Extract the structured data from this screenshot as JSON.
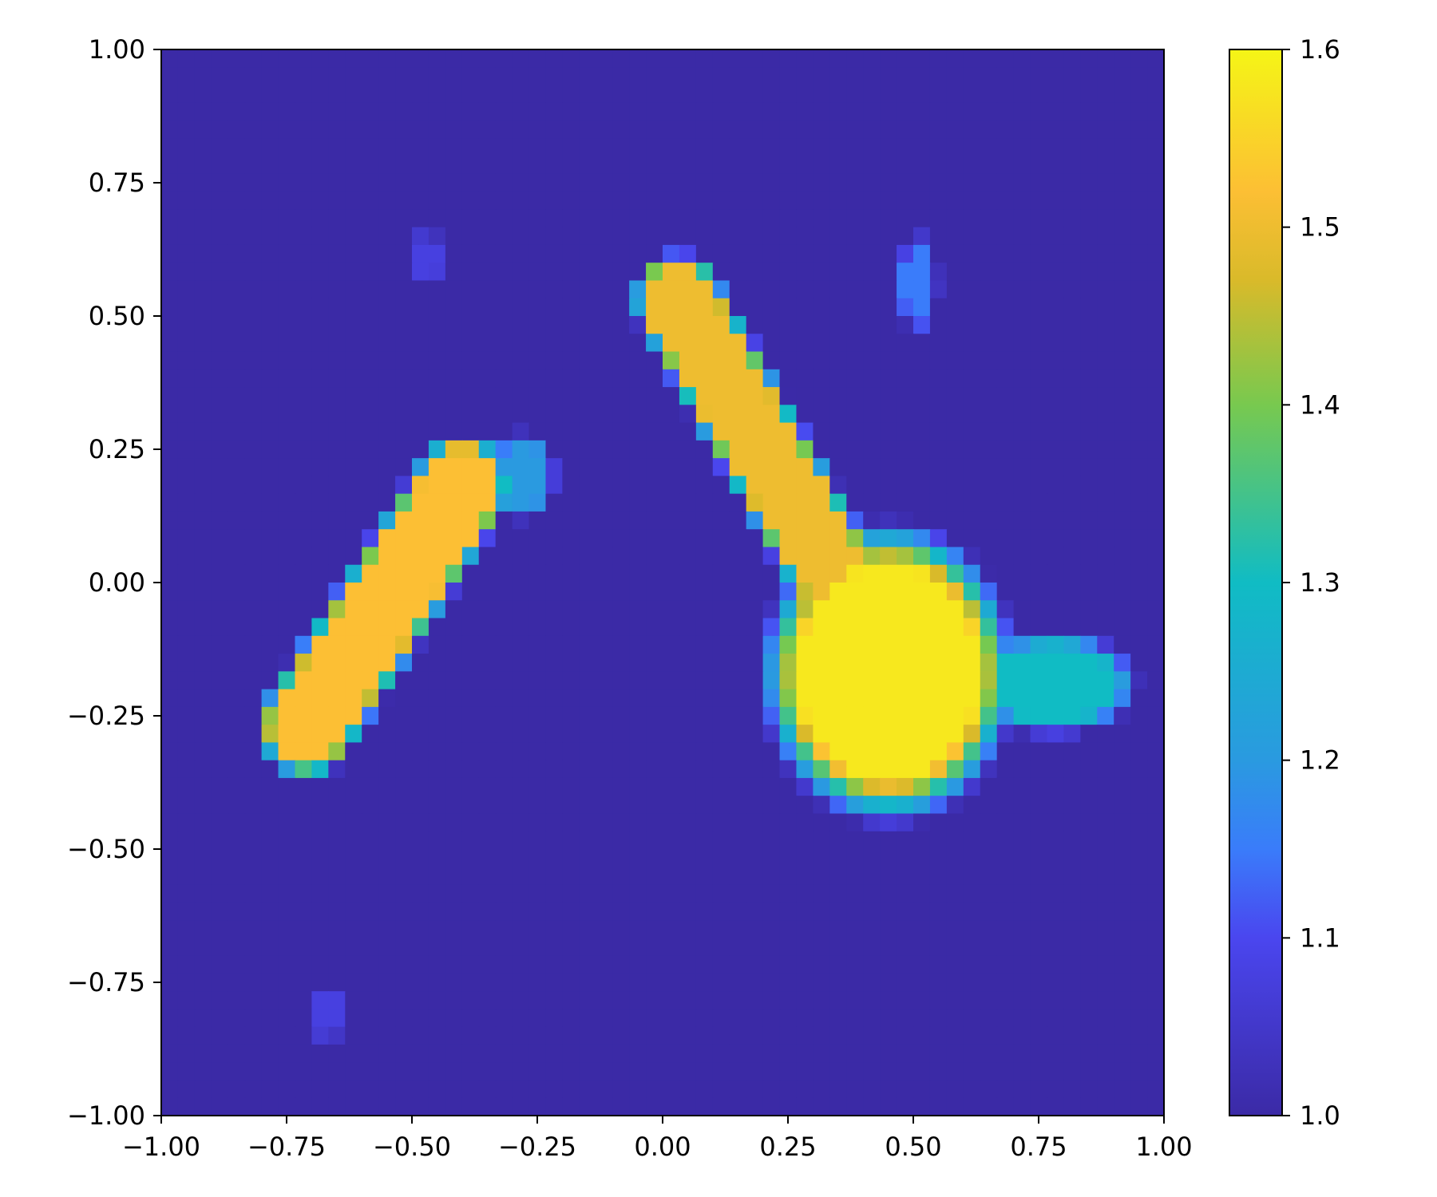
{
  "chart_data": {
    "type": "heatmap",
    "title": "",
    "xlabel": "",
    "ylabel": "",
    "xlim": [
      -1.0,
      1.0
    ],
    "ylim": [
      -1.0,
      1.0
    ],
    "grid": false,
    "x_ticks": [
      {
        "value": -1.0,
        "label": "−1.00"
      },
      {
        "value": -0.75,
        "label": "−0.75"
      },
      {
        "value": -0.5,
        "label": "−0.50"
      },
      {
        "value": -0.25,
        "label": "−0.25"
      },
      {
        "value": 0.0,
        "label": "0.00"
      },
      {
        "value": 0.25,
        "label": "0.25"
      },
      {
        "value": 0.5,
        "label": "0.50"
      },
      {
        "value": 0.75,
        "label": "0.75"
      },
      {
        "value": 1.0,
        "label": "1.00"
      }
    ],
    "y_ticks": [
      {
        "value": 1.0,
        "label": "1.00"
      },
      {
        "value": 0.75,
        "label": "0.75"
      },
      {
        "value": 0.5,
        "label": "0.50"
      },
      {
        "value": 0.25,
        "label": "0.25"
      },
      {
        "value": 0.0,
        "label": "0.00"
      },
      {
        "value": -0.25,
        "label": "−0.25"
      },
      {
        "value": -0.5,
        "label": "−0.50"
      },
      {
        "value": -0.75,
        "label": "−0.75"
      },
      {
        "value": -1.0,
        "label": "−1.00"
      }
    ],
    "grid_resolution": 60,
    "background_value": 1.0,
    "colorbar": {
      "vmin": 1.0,
      "vmax": 1.6,
      "ticks": [
        {
          "value": 1.0,
          "label": "1.0"
        },
        {
          "value": 1.1,
          "label": "1.1"
        },
        {
          "value": 1.2,
          "label": "1.2"
        },
        {
          "value": 1.3,
          "label": "1.3"
        },
        {
          "value": 1.4,
          "label": "1.4"
        },
        {
          "value": 1.5,
          "label": "1.5"
        },
        {
          "value": 1.6,
          "label": "1.6"
        }
      ],
      "colormap": [
        [
          1.0,
          "#3b2aa6"
        ],
        [
          1.1,
          "#4a46ef"
        ],
        [
          1.15,
          "#3a7cfa"
        ],
        [
          1.2,
          "#2a9ae0"
        ],
        [
          1.3,
          "#10bcc4"
        ],
        [
          1.4,
          "#78c94f"
        ],
        [
          1.47,
          "#d9ba2a"
        ],
        [
          1.52,
          "#fcbf34"
        ],
        [
          1.6,
          "#f5f516"
        ]
      ]
    },
    "features": [
      {
        "shape": "segment",
        "from": [
          -0.71,
          -0.27
        ],
        "to": [
          -0.4,
          0.18
        ],
        "half_width": 0.07,
        "value": 1.52
      },
      {
        "shape": "segment",
        "from": [
          0.03,
          0.53
        ],
        "to": [
          0.34,
          0.02
        ],
        "half_width": 0.065,
        "value": 1.5
      },
      {
        "shape": "ellipse",
        "center": [
          0.45,
          -0.17
        ],
        "radii": [
          0.18,
          0.2
        ],
        "value": 1.58
      },
      {
        "shape": "ellipse",
        "center": [
          0.78,
          -0.19
        ],
        "radii": [
          0.12,
          0.07
        ],
        "value": 1.3
      },
      {
        "shape": "ellipse",
        "center": [
          -0.28,
          0.2
        ],
        "radii": [
          0.05,
          0.06
        ],
        "value": 1.2
      },
      {
        "shape": "ellipse",
        "center": [
          0.51,
          0.56
        ],
        "radii": [
          0.03,
          0.07
        ],
        "value": 1.15
      },
      {
        "shape": "ellipse",
        "center": [
          -0.47,
          0.61
        ],
        "radii": [
          0.025,
          0.04
        ],
        "value": 1.08
      },
      {
        "shape": "ellipse",
        "center": [
          -0.67,
          -0.81
        ],
        "radii": [
          0.03,
          0.04
        ],
        "value": 1.08
      }
    ]
  }
}
